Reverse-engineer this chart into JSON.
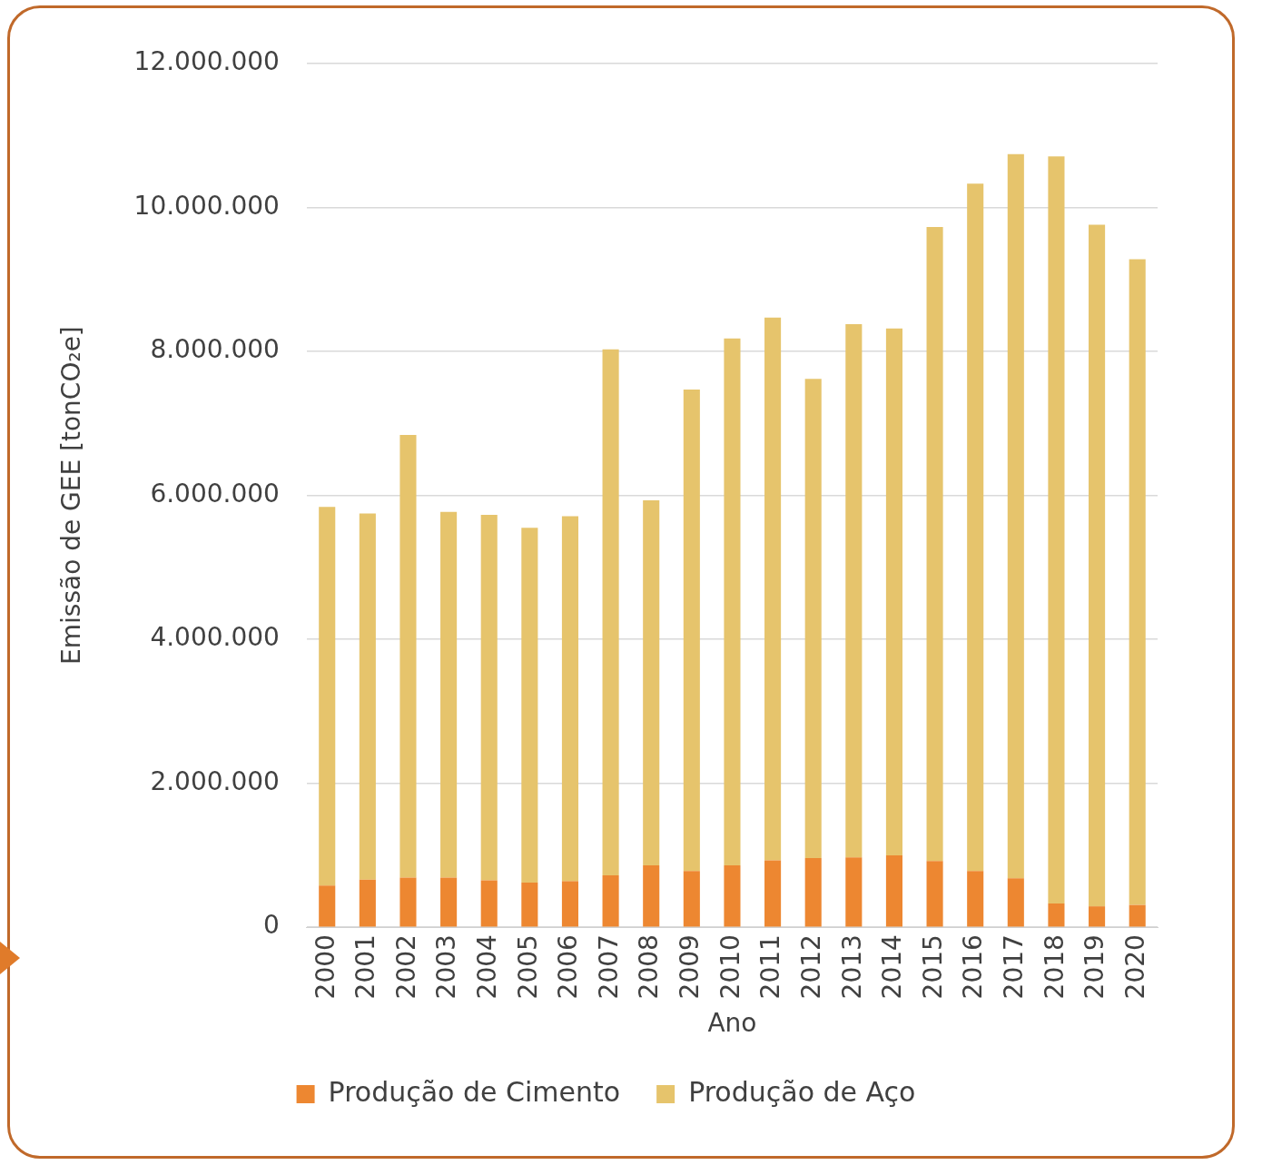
{
  "chart_data": {
    "type": "bar",
    "stacked": true,
    "ylabel": "Emissão de GEE [tonCO₂e]",
    "xlabel": "Ano",
    "categories": [
      "2000",
      "2001",
      "2002",
      "2003",
      "2004",
      "2005",
      "2006",
      "2007",
      "2008",
      "2009",
      "2010",
      "2011",
      "2012",
      "2013",
      "2014",
      "2015",
      "2016",
      "2017",
      "2018",
      "2019",
      "2020"
    ],
    "series": [
      {
        "name": "Produção de Cimento",
        "color": "#ed8731",
        "values": [
          580000,
          660000,
          690000,
          690000,
          650000,
          620000,
          640000,
          720000,
          860000,
          780000,
          860000,
          930000,
          960000,
          970000,
          1000000,
          920000,
          780000,
          680000,
          330000,
          290000,
          310000
        ]
      },
      {
        "name": "Produção de Aço",
        "color": "#e6c46c",
        "values": [
          5260000,
          5090000,
          6150000,
          5080000,
          5080000,
          4930000,
          5070000,
          7310000,
          5070000,
          6690000,
          7320000,
          7540000,
          6660000,
          7410000,
          7320000,
          8810000,
          9550000,
          10060000,
          10380000,
          9470000,
          8970000
        ]
      }
    ],
    "ylim": [
      0,
      12000000
    ],
    "yticks": [
      {
        "value": 0,
        "label": "0"
      },
      {
        "value": 2000000,
        "label": "2.000.000"
      },
      {
        "value": 4000000,
        "label": "4.000.000"
      },
      {
        "value": 6000000,
        "label": "6.000.000"
      },
      {
        "value": 8000000,
        "label": "8.000.000"
      },
      {
        "value": 10000000,
        "label": "10.000.000"
      },
      {
        "value": 12000000,
        "label": "12.000.000"
      }
    ],
    "grid": "y",
    "legend": "bottom"
  }
}
